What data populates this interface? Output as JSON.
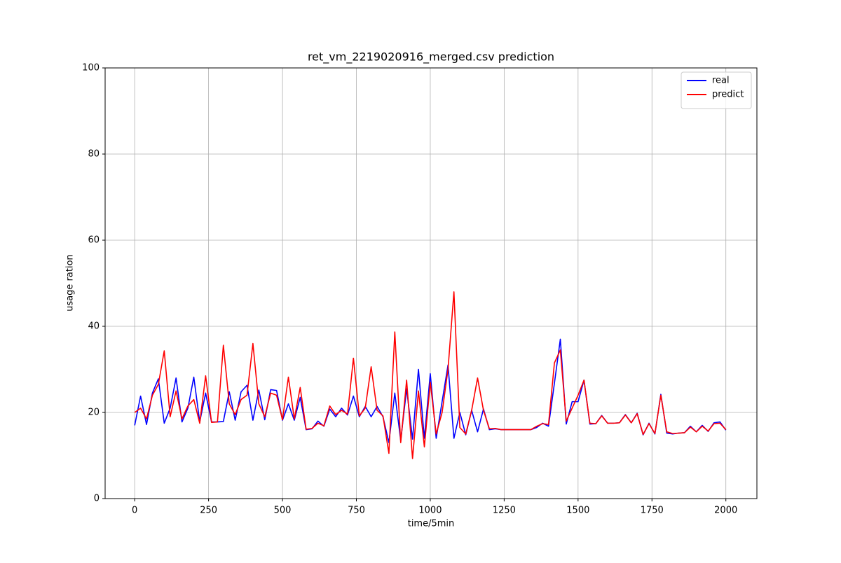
{
  "chart_data": {
    "type": "line",
    "title": "ret_vm_2219020916_merged.csv prediction",
    "x_label": "time/5min",
    "y_label": "usage ration",
    "x": [
      0,
      20,
      40,
      60,
      80,
      100,
      120,
      140,
      160,
      180,
      200,
      220,
      240,
      260,
      280,
      300,
      320,
      340,
      360,
      380,
      400,
      420,
      440,
      460,
      480,
      500,
      520,
      540,
      560,
      580,
      600,
      620,
      640,
      660,
      680,
      700,
      720,
      740,
      760,
      780,
      800,
      820,
      840,
      860,
      880,
      900,
      920,
      940,
      960,
      980,
      1000,
      1020,
      1040,
      1060,
      1080,
      1100,
      1120,
      1140,
      1160,
      1180,
      1200,
      1220,
      1240,
      1260,
      1280,
      1300,
      1320,
      1340,
      1360,
      1380,
      1400,
      1420,
      1440,
      1460,
      1480,
      1500,
      1520,
      1540,
      1560,
      1580,
      1600,
      1620,
      1640,
      1660,
      1680,
      1700,
      1720,
      1740,
      1760,
      1780,
      1800,
      1820,
      1840,
      1860,
      1880,
      1900,
      1920,
      1940,
      1960,
      1980,
      2000
    ],
    "series": [
      {
        "name": "real",
        "color": "#0000ff",
        "values": [
          17,
          23.8,
          17.2,
          24.5,
          27.8,
          17.5,
          21,
          28,
          17.8,
          21,
          28.2,
          17.8,
          24.5,
          17.8,
          17.8,
          17.9,
          24.8,
          18.2,
          24.8,
          26.3,
          18.2,
          25.2,
          18.3,
          25.3,
          25.1,
          18.2,
          22,
          18.2,
          23.5,
          16,
          16.2,
          18,
          16.8,
          20.8,
          19,
          21,
          19.4,
          23.8,
          19,
          21.4,
          19,
          21.4,
          19,
          13,
          24.5,
          13.5,
          25.5,
          13.8,
          30,
          14,
          29,
          14,
          22.5,
          31,
          14,
          20,
          14.8,
          20.5,
          15.5,
          20.8,
          16,
          16.2,
          16,
          16,
          16,
          16,
          16,
          16,
          16.5,
          17.5,
          16.8,
          26.8,
          37,
          17.3,
          22.5,
          22.5,
          27.5,
          17.3,
          17.4,
          19.3,
          17.5,
          17.5,
          17.6,
          19.5,
          17.6,
          19.8,
          14.8,
          17.5,
          15,
          24.2,
          15.2,
          15,
          15.2,
          15.3,
          16.8,
          15.5,
          17,
          15.6,
          17.6,
          17.8,
          15.9
        ]
      },
      {
        "name": "predict",
        "color": "#ff0000",
        "values": [
          20,
          21,
          18.5,
          24,
          26.5,
          34.3,
          19,
          25,
          18.5,
          21.5,
          23,
          17.5,
          28.5,
          17.7,
          17.8,
          35.6,
          22,
          19.5,
          23,
          24,
          36,
          22,
          19,
          24.5,
          24,
          18.3,
          28.2,
          18.5,
          25.8,
          16.1,
          16.3,
          17.5,
          16.9,
          21.5,
          19.5,
          20.5,
          19.6,
          32.6,
          19.2,
          21,
          30.6,
          20.5,
          19.2,
          10.5,
          38.7,
          13,
          27.5,
          9.3,
          25,
          12,
          27,
          15,
          20,
          30,
          48,
          16.5,
          15,
          20.5,
          28,
          20.5,
          16.2,
          16.3,
          16,
          16,
          16,
          16,
          16,
          16,
          16.8,
          17.4,
          17.2,
          31.5,
          34.5,
          18,
          21,
          24,
          27.5,
          17.5,
          17.4,
          19.2,
          17.5,
          17.5,
          17.6,
          19.4,
          17.6,
          19.7,
          14.9,
          17.4,
          15.1,
          24,
          15.5,
          15.1,
          15.2,
          15.3,
          16.6,
          15.5,
          16.8,
          15.7,
          17.4,
          17.5,
          16
        ]
      }
    ],
    "xlim": [
      -100,
      2105
    ],
    "ylim": [
      0,
      100
    ],
    "xticks": [
      0,
      250,
      500,
      750,
      1000,
      1250,
      1500,
      1750,
      2000
    ],
    "yticks": [
      0,
      20,
      40,
      60,
      80,
      100
    ],
    "grid": true,
    "legend": "upper right"
  }
}
